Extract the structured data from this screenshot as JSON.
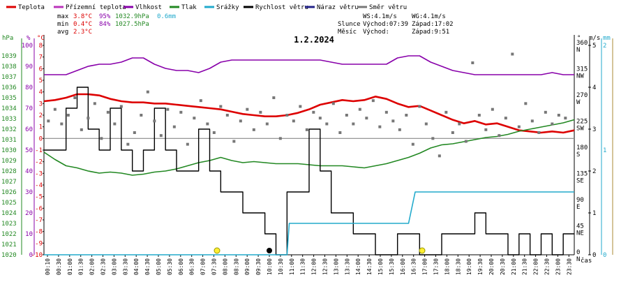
{
  "legend": [
    {
      "label": "Teplota",
      "color": "#dd0000"
    },
    {
      "label": "Přízemní teplota",
      "color": "#bb33bb"
    },
    {
      "label": "Vlhkost",
      "color": "#8800aa"
    },
    {
      "label": "Tlak",
      "color": "#228822"
    },
    {
      "label": "Srážky",
      "color": "#22aacc"
    },
    {
      "label": "Rychlost větru",
      "color": "#000000"
    },
    {
      "label": "Náraz větru",
      "color": "#222288"
    },
    {
      "label": "Směr větru",
      "color": "#777777"
    }
  ],
  "stats": {
    "rows": [
      {
        "label": "max",
        "temp": "3.8°C",
        "hum": "95%",
        "press": "1032.9hPa",
        "rain": "0.6mm"
      },
      {
        "label": "min",
        "temp": "0.4°C",
        "hum": "84%",
        "press": "1027.5hPa",
        "rain": ""
      },
      {
        "label": "avg",
        "temp": "2.3°C",
        "hum": "",
        "press": "",
        "rain": ""
      }
    ],
    "ws": "WS:4.1m/s",
    "wg": "WG:4.1m/s",
    "sun_label": "Slunce",
    "sunrise": "Východ:07:39",
    "sunset": "Západ:17:02",
    "moon_label": "Měsíc",
    "moonrise": "Východ:",
    "moonset": "Západ:9:51"
  },
  "chart_data": {
    "type": "line",
    "title": "1.2.2024",
    "xlabel": "čas",
    "axis_units": {
      "pressure": "hPa",
      "humidity": "%",
      "temperature": "°C",
      "direction": "°",
      "wind": "m/s",
      "rain": "mm"
    },
    "x_ticks": [
      "00:10",
      "00:30",
      "01:00",
      "01:30",
      "02:00",
      "02:30",
      "03:00",
      "03:30",
      "04:00",
      "04:30",
      "05:00",
      "05:30",
      "06:00",
      "06:30",
      "07:00",
      "07:30",
      "08:00",
      "08:30",
      "09:00",
      "09:30",
      "10:00",
      "10:30",
      "11:00",
      "11:30",
      "12:00",
      "12:30",
      "13:00",
      "13:30",
      "14:00",
      "14:30",
      "15:00",
      "15:30",
      "16:00",
      "16:30",
      "17:00",
      "17:30",
      "18:00",
      "18:30",
      "19:00",
      "19:30",
      "20:00",
      "20:30",
      "21:00",
      "21:30",
      "22:00",
      "22:30",
      "23:00",
      "23:30"
    ],
    "axes": {
      "pressure": {
        "range": [
          1020,
          1040
        ],
        "ticks": [
          "1039",
          "1038",
          "1037",
          "1036",
          "1035",
          "1034",
          "1033",
          "1032",
          "1031",
          "1030",
          "1029",
          "1028",
          "1027",
          "1026",
          "1025",
          "1024",
          "1023",
          "1022",
          "1021",
          "1020"
        ],
        "color": "#228822"
      },
      "humidity": {
        "range": [
          0,
          100
        ],
        "ticks": [
          "100",
          "90",
          "80",
          "70",
          "60",
          "50",
          "40",
          "30",
          "20",
          "10",
          "0"
        ],
        "color": "#8800aa"
      },
      "temperature": {
        "range": [
          -10,
          8
        ],
        "ticks": [
          "8",
          "7",
          "6",
          "5",
          "4",
          "3",
          "2",
          "1",
          "0",
          "-1",
          "-2",
          "-3",
          "-4",
          "-5",
          "-6",
          "-7",
          "-8",
          "-9",
          "-10"
        ],
        "color": "#dd0000"
      },
      "direction": {
        "ticks": [
          {
            "deg": "360",
            "dir": "N"
          },
          {
            "deg": "315",
            "dir": "NW"
          },
          {
            "deg": "270",
            "dir": "W"
          },
          {
            "deg": "225",
            "dir": "SW"
          },
          {
            "deg": "180",
            "dir": "S"
          },
          {
            "deg": "135",
            "dir": "SE"
          },
          {
            "deg": "90",
            "dir": "E"
          },
          {
            "deg": "45",
            "dir": "NE"
          },
          {
            "deg": "0",
            "dir": "N"
          }
        ]
      },
      "wind": {
        "range": [
          0,
          5
        ],
        "ticks": [
          "5",
          "4",
          "3",
          "2",
          "1",
          "0"
        ]
      },
      "rain": {
        "range": [
          0,
          2
        ],
        "ticks": [
          "2",
          "1",
          "0"
        ],
        "color": "#22aacc"
      }
    },
    "series": [
      {
        "name": "Teplota",
        "axis": "temperature",
        "color": "#dd0000",
        "x": [
          0,
          0.5,
          1,
          1.5,
          2,
          2.5,
          3,
          3.5,
          4,
          4.5,
          5,
          5.5,
          6,
          6.5,
          7,
          7.5,
          8,
          8.5,
          9,
          9.5,
          10,
          10.5,
          11,
          11.5,
          12,
          12.5,
          13,
          13.5,
          14,
          14.5,
          15,
          15.5,
          16,
          16.5,
          17,
          17.5,
          18,
          18.5,
          19,
          19.5,
          20,
          20.5,
          21,
          21.5,
          22,
          22.5,
          23,
          23.5,
          24
        ],
        "y": [
          3.2,
          3.3,
          3.5,
          3.8,
          3.8,
          3.7,
          3.4,
          3.2,
          3.1,
          3.1,
          3.0,
          3.0,
          2.9,
          2.8,
          2.7,
          2.6,
          2.5,
          2.3,
          2.1,
          2.0,
          1.9,
          1.9,
          2.0,
          2.2,
          2.5,
          2.9,
          3.1,
          3.3,
          3.2,
          3.3,
          3.6,
          3.4,
          3.0,
          2.7,
          2.8,
          2.4,
          2.0,
          1.6,
          1.3,
          1.5,
          1.2,
          1.3,
          1.0,
          0.7,
          0.6,
          0.5,
          0.6,
          0.5,
          0.7
        ]
      },
      {
        "name": "Vlhkost",
        "axis": "humidity",
        "color": "#8800aa",
        "x": [
          0,
          0.5,
          1,
          1.5,
          2,
          2.5,
          3,
          3.5,
          4,
          4.5,
          5,
          5.5,
          6,
          6.5,
          7,
          7.5,
          8,
          8.5,
          9,
          9.5,
          10,
          10.5,
          11,
          11.5,
          12,
          12.5,
          13,
          13.5,
          14,
          14.5,
          15,
          15.5,
          16,
          16.5,
          17,
          17.5,
          18,
          18.5,
          19,
          19.5,
          20,
          20.5,
          21,
          21.5,
          22,
          22.5,
          23,
          23.5,
          24
        ],
        "y": [
          86,
          86,
          86,
          88,
          90,
          91,
          91,
          92,
          94,
          94,
          91,
          89,
          88,
          88,
          87,
          89,
          92,
          93,
          93,
          93,
          93,
          93,
          93,
          93,
          93,
          93,
          92,
          91,
          91,
          91,
          91,
          91,
          94,
          95,
          95,
          92,
          90,
          88,
          87,
          86,
          86,
          86,
          86,
          86,
          86,
          86,
          87,
          86,
          86
        ]
      },
      {
        "name": "Tlak",
        "axis": "pressure",
        "color": "#228822",
        "x": [
          0,
          0.5,
          1,
          1.5,
          2,
          2.5,
          3,
          3.5,
          4,
          4.5,
          5,
          5.5,
          6,
          6.5,
          7,
          7.5,
          8,
          8.5,
          9,
          9.5,
          10,
          10.5,
          11,
          11.5,
          12,
          12.5,
          13,
          13.5,
          14,
          14.5,
          15,
          15.5,
          16,
          16.5,
          17,
          17.5,
          18,
          18.5,
          19,
          19.5,
          20,
          20.5,
          21,
          21.5,
          22,
          22.5,
          23,
          23.5,
          24
        ],
        "y": [
          1029.8,
          1029.1,
          1028.5,
          1028.3,
          1028.0,
          1027.8,
          1027.9,
          1027.8,
          1027.6,
          1027.7,
          1027.9,
          1028.0,
          1028.2,
          1028.5,
          1028.8,
          1029.0,
          1029.3,
          1029.0,
          1028.8,
          1028.9,
          1028.8,
          1028.7,
          1028.7,
          1028.7,
          1028.6,
          1028.5,
          1028.5,
          1028.5,
          1028.4,
          1028.3,
          1028.5,
          1028.7,
          1029.0,
          1029.3,
          1029.7,
          1030.2,
          1030.5,
          1030.6,
          1030.8,
          1031.0,
          1031.2,
          1031.3,
          1031.5,
          1031.8,
          1032.0,
          1032.2,
          1032.4,
          1032.6,
          1032.9
        ]
      },
      {
        "name": "Rychlost větru",
        "axis": "wind",
        "color": "#000000",
        "x": [
          0,
          0.5,
          1,
          1.5,
          2,
          2.5,
          3,
          3.5,
          4,
          4.5,
          5,
          5.5,
          6,
          6.5,
          7,
          7.5,
          8,
          8.5,
          9,
          9.5,
          10,
          10.5,
          11,
          11.5,
          12,
          12.5,
          13,
          13.5,
          14,
          14.5,
          15,
          15.5,
          16,
          16.5,
          17,
          17.5,
          18,
          18.5,
          19,
          19.5,
          20,
          20.5,
          21,
          21.5,
          22,
          22.5,
          23,
          23.5,
          24
        ],
        "y": [
          2.5,
          2.5,
          3.5,
          4.0,
          3.0,
          2.5,
          3.5,
          2.5,
          2.0,
          2.5,
          3.5,
          2.5,
          2.0,
          2.0,
          3.0,
          2.0,
          1.5,
          1.5,
          1.0,
          1.0,
          0.5,
          0.0,
          1.5,
          1.5,
          3.0,
          2.0,
          1.0,
          1.0,
          0.5,
          0.5,
          0.0,
          0.0,
          0.5,
          0.5,
          0.0,
          0.0,
          0.5,
          0.5,
          0.5,
          1.0,
          0.5,
          0.5,
          0.0,
          0.5,
          0.0,
          0.5,
          0.0,
          0.5,
          0.5
        ]
      },
      {
        "name": "Srážky",
        "axis": "rain",
        "color": "#22aacc",
        "x": [
          0,
          11.0,
          11.1,
          16.5,
          16.8,
          24
        ],
        "y": [
          0,
          0,
          0.3,
          0.3,
          0.6,
          0.6
        ]
      },
      {
        "name": "Směr větru",
        "axis": "direction",
        "color": "#777777",
        "x": [
          0.2,
          0.5,
          0.8,
          1.1,
          1.4,
          1.7,
          2.0,
          2.3,
          2.6,
          2.9,
          3.2,
          3.5,
          3.8,
          4.1,
          4.4,
          4.7,
          5.0,
          5.3,
          5.6,
          5.9,
          6.2,
          6.5,
          6.8,
          7.1,
          7.4,
          7.7,
          8.0,
          8.3,
          8.6,
          8.9,
          9.2,
          9.5,
          9.8,
          10.1,
          10.4,
          10.7,
          11.0,
          11.3,
          11.6,
          11.9,
          12.2,
          12.5,
          12.8,
          13.1,
          13.4,
          13.7,
          14.0,
          14.3,
          14.6,
          14.9,
          15.2,
          15.5,
          15.8,
          16.1,
          16.4,
          16.7,
          17.0,
          17.3,
          17.6,
          17.9,
          18.2,
          18.5,
          18.8,
          19.1,
          19.4,
          19.7,
          20.0,
          20.3,
          20.6,
          20.9,
          21.2,
          21.5,
          21.8,
          22.1,
          22.4,
          22.7,
          23.0,
          23.3,
          23.6
        ],
        "y": [
          230,
          250,
          225,
          240,
          270,
          215,
          235,
          260,
          200,
          245,
          225,
          255,
          190,
          210,
          240,
          280,
          230,
          205,
          250,
          220,
          245,
          190,
          235,
          265,
          225,
          210,
          255,
          240,
          195,
          230,
          250,
          215,
          245,
          225,
          270,
          200,
          240,
          230,
          255,
          215,
          245,
          235,
          225,
          260,
          210,
          240,
          225,
          250,
          235,
          265,
          220,
          245,
          230,
          215,
          240,
          190,
          255,
          225,
          200,
          170,
          245,
          210,
          225,
          195,
          330,
          240,
          215,
          250,
          205,
          235,
          345,
          220,
          260,
          230,
          210,
          245,
          225,
          240,
          235
        ]
      }
    ]
  }
}
